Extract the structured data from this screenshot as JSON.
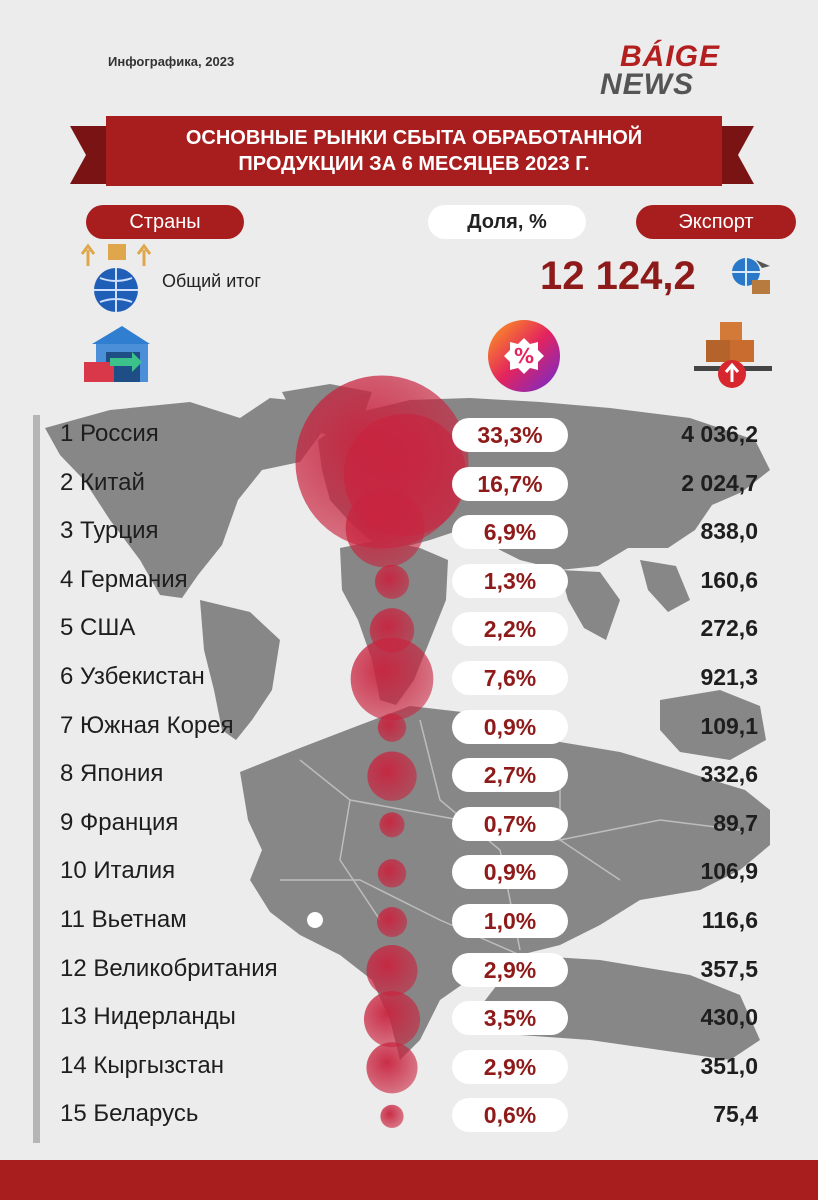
{
  "header": {
    "subtitle": "Инфографика, 2023",
    "logo_top": "BÁIGE",
    "logo_bottom": "NEWS",
    "title_line1": "ОСНОВНЫЕ РЫНКИ СБЫТА ОБРАБОТАННОЙ",
    "title_line2": "ПРОДУКЦИИ ЗА 6 МЕСЯЦЕВ 2023 Г."
  },
  "columns": {
    "countries": "Страны",
    "share": "Доля, %",
    "export": "Экспорт"
  },
  "total": {
    "label": "Общий итог",
    "value": "12 124,2"
  },
  "icons": [
    "globe-export-icon",
    "warehouse-icon",
    "percent-badge-icon",
    "global-logistics-icon",
    "cargo-up-icon"
  ],
  "colors": {
    "brand_red": "#a81d1d",
    "bubble": "#c8243f",
    "map_gray": "#878787",
    "background": "#ececec"
  },
  "chart_data": {
    "type": "table",
    "columns": [
      "Страны",
      "Доля, %",
      "Экспорт"
    ],
    "rows": [
      {
        "label": "1  Россия",
        "share_text": "33,3%",
        "share": 33.3,
        "export_text": "4 036,2",
        "export": 4036.2
      },
      {
        "label": "2  Китай",
        "share_text": "16,7%",
        "share": 16.7,
        "export_text": "2 024,7",
        "export": 2024.7
      },
      {
        "label": "3  Турция",
        "share_text": "6,9%",
        "share": 6.9,
        "export_text": "838,0",
        "export": 838.0
      },
      {
        "label": "4  Германия",
        "share_text": "1,3%",
        "share": 1.3,
        "export_text": "160,6",
        "export": 160.6
      },
      {
        "label": "5 США",
        "share_text": "2,2%",
        "share": 2.2,
        "export_text": "272,6",
        "export": 272.6
      },
      {
        "label": "6  Узбекистан",
        "share_text": "7,6%",
        "share": 7.6,
        "export_text": "921,3",
        "export": 921.3
      },
      {
        "label": "7  Южная Корея",
        "share_text": "0,9%",
        "share": 0.9,
        "export_text": "109,1",
        "export": 109.1
      },
      {
        "label": "8 Япония",
        "share_text": "2,7%",
        "share": 2.7,
        "export_text": "332,6",
        "export": 332.6
      },
      {
        "label": "9 Франция",
        "share_text": "0,7%",
        "share": 0.7,
        "export_text": "89,7",
        "export": 89.7
      },
      {
        "label": "10 Италия",
        "share_text": "0,9%",
        "share": 0.9,
        "export_text": "106,9",
        "export": 106.9
      },
      {
        "label": "11 Вьетнам",
        "share_text": "1,0%",
        "share": 1.0,
        "export_text": "116,6",
        "export": 116.6
      },
      {
        "label": "12 Великобритания",
        "share_text": "2,9%",
        "share": 2.9,
        "export_text": "357,5",
        "export": 357.5
      },
      {
        "label": "13 Нидерланды",
        "share_text": "3,5%",
        "share": 3.5,
        "export_text": "430,0",
        "export": 430.0
      },
      {
        "label": "14 Кыргызстан",
        "share_text": "2,9%",
        "share": 2.9,
        "export_text": "351,0",
        "export": 351.0
      },
      {
        "label": "15 Беларусь",
        "share_text": "0,6%",
        "share": 0.6,
        "export_text": "75,4",
        "export": 75.4
      }
    ]
  }
}
